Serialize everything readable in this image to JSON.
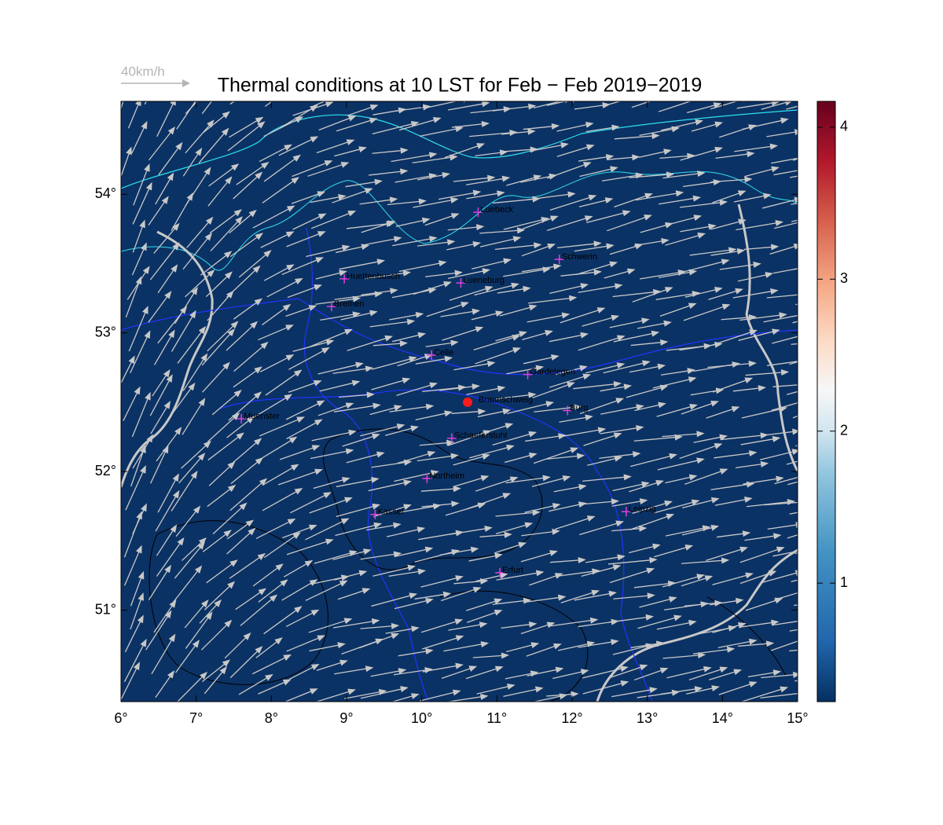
{
  "map": {
    "title": "Thermal conditions at 10 LST for Feb − Feb  2019−2019",
    "wind_scale_label": "40km/h",
    "xlim": [
      6,
      15
    ],
    "ylim": [
      50.34,
      54.67
    ],
    "xticks": [
      {
        "value": 6,
        "label": "6°"
      },
      {
        "value": 7,
        "label": "7°"
      },
      {
        "value": 8,
        "label": "8°"
      },
      {
        "value": 9,
        "label": "9°"
      },
      {
        "value": 10,
        "label": "10°"
      },
      {
        "value": 11,
        "label": "11°"
      },
      {
        "value": 12,
        "label": "12°"
      },
      {
        "value": 13,
        "label": "13°"
      },
      {
        "value": 14,
        "label": "14°"
      },
      {
        "value": 15,
        "label": "15°"
      }
    ],
    "yticks": [
      {
        "value": 51,
        "label": "51°"
      },
      {
        "value": 52,
        "label": "52°"
      },
      {
        "value": 53,
        "label": "53°"
      },
      {
        "value": 54,
        "label": "54°"
      }
    ],
    "colorbar": {
      "lim": [
        0.22,
        4.17
      ],
      "ticks": [
        1,
        2,
        3,
        4
      ]
    },
    "cities": [
      {
        "name": "Luebeck",
        "lon": 10.75,
        "lat": 53.87
      },
      {
        "name": "Huettenbusch",
        "lon": 8.97,
        "lat": 53.39
      },
      {
        "name": "Lueneburg",
        "lon": 10.52,
        "lat": 53.36
      },
      {
        "name": "Schwerin",
        "lon": 11.83,
        "lat": 53.53
      },
      {
        "name": "Bremen",
        "lon": 8.8,
        "lat": 53.19
      },
      {
        "name": "Celle",
        "lon": 10.13,
        "lat": 52.84
      },
      {
        "name": "Gardelegen",
        "lon": 11.41,
        "lat": 52.7
      },
      {
        "name": "Burg",
        "lon": 11.94,
        "lat": 52.44
      },
      {
        "name": "Muenster",
        "lon": 7.6,
        "lat": 52.38
      },
      {
        "name": "Schaeferstuhl",
        "lon": 10.4,
        "lat": 52.24
      },
      {
        "name": "Northeim",
        "lon": 10.07,
        "lat": 51.95
      },
      {
        "name": "Kassel",
        "lon": 9.38,
        "lat": 51.69
      },
      {
        "name": "Leipzig",
        "lon": 12.72,
        "lat": 51.71
      },
      {
        "name": "Erfurt",
        "lon": 11.04,
        "lat": 51.27
      }
    ],
    "highlight": {
      "name": "Braunschweig",
      "lon": 10.61,
      "lat": 52.5
    }
  }
}
